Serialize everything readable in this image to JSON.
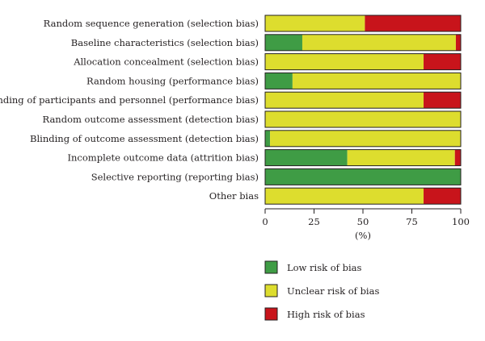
{
  "chart_data": {
    "type": "bar",
    "orientation": "horizontal",
    "stacked": true,
    "categories": [
      "Random sequence generation (selection bias)",
      "Baseline characteristics (selection bias)",
      "Allocation concealment (selection bias)",
      "Random housing (performance bias)",
      "Blinding of participants and personnel (performance bias)",
      "Random outcome assessment (detection bias)",
      "Blinding of outcome assessment (detection bias)",
      "Incomplete outcome data (attrition bias)",
      "Selective reporting (reporting bias)",
      "Other bias"
    ],
    "series": [
      {
        "name": "Low risk of bias",
        "color": "#3f9c45",
        "values": [
          0,
          19,
          0,
          14,
          0,
          0,
          2.5,
          42,
          100,
          0
        ]
      },
      {
        "name": "Unclear risk of bias",
        "color": "#dddd2e",
        "values": [
          51,
          78.5,
          81,
          86,
          81,
          100,
          97.5,
          55,
          0,
          81
        ]
      },
      {
        "name": "High risk of bias",
        "color": "#c8141b",
        "values": [
          49,
          2.5,
          19,
          0,
          19,
          0,
          0,
          3,
          0,
          19
        ]
      }
    ],
    "xlim": [
      0,
      100
    ],
    "xticks": [
      "0",
      "25",
      "50",
      "75",
      "100"
    ],
    "xlabel": "(%)",
    "ylabel": "",
    "title": "",
    "grid": false,
    "legend_position": "bottom"
  }
}
